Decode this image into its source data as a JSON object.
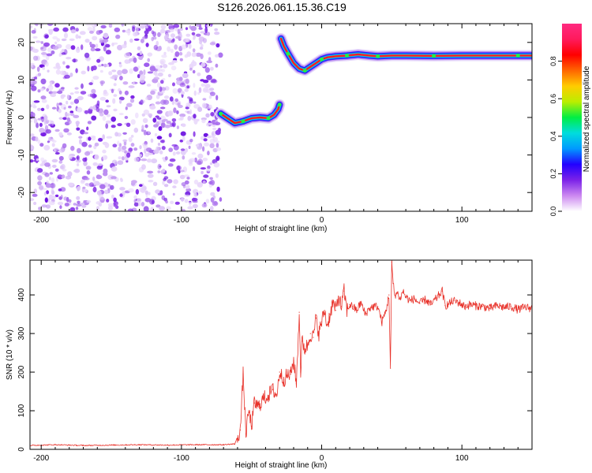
{
  "figure": {
    "title": "S126.2026.061.15.36.C19"
  },
  "chart_data": [
    {
      "type": "heatmap",
      "xlabel": "Height of straight line (km)",
      "ylabel": "Frequency (Hz)",
      "xlim": [
        -208,
        150
      ],
      "ylim": [
        -25,
        25
      ],
      "xticks": [
        -200,
        -100,
        0,
        100
      ],
      "yticks": [
        -20,
        -10,
        0,
        10,
        20
      ],
      "noise_region": {
        "x": [
          -208,
          -72
        ],
        "y": [
          -25,
          25
        ]
      },
      "trace": {
        "x": [
          -72,
          -68,
          -62,
          -56,
          -50,
          -44,
          -38,
          -34,
          -31,
          -30,
          -29,
          -27,
          -24,
          -20,
          -16,
          -12,
          -8,
          -4,
          0,
          4,
          10,
          18,
          26,
          34,
          40,
          50,
          60,
          80,
          100,
          120,
          140,
          150
        ],
        "y": [
          1.0,
          0.0,
          -1.5,
          -1.0,
          -0.2,
          0.0,
          -0.2,
          0.7,
          2.2,
          3.4,
          21.0,
          19.0,
          17.0,
          14.5,
          13.0,
          12.5,
          13.5,
          14.5,
          15.5,
          16.0,
          16.3,
          16.5,
          16.8,
          16.5,
          16.3,
          16.5,
          16.5,
          16.4,
          16.5,
          16.5,
          16.5,
          16.5
        ]
      },
      "colorbar": {
        "label": "Normalized spectral amplitude",
        "range": [
          0,
          1
        ],
        "ticks": [
          "0.0",
          "0.2",
          "0.4",
          "0.6",
          "0.8"
        ],
        "tick_values": [
          0.0,
          0.2,
          0.4,
          0.6,
          0.8
        ],
        "stops": [
          "#ffffff",
          "#cc88f0",
          "#7b22e8",
          "#2200ff",
          "#0099ff",
          "#00dddd",
          "#00ee44",
          "#bbee00",
          "#ffcc00",
          "#ff6600",
          "#ff0000",
          "#ff1a5c",
          "#ff2a80"
        ]
      }
    },
    {
      "type": "line",
      "xlabel": "Height of straight line (km)",
      "ylabel": "SNR (10 * v/v)",
      "xlim": [
        -208,
        150
      ],
      "ylim": [
        0,
        490
      ],
      "xticks": [
        -200,
        -100,
        0,
        100
      ],
      "yticks": [
        0,
        100,
        200,
        300,
        400
      ],
      "color": "#e8322a",
      "series": [
        {
          "x": [
            -208,
            -190,
            -170,
            -150,
            -130,
            -110,
            -90,
            -70,
            -62,
            -58,
            -56,
            -54,
            -52,
            -50,
            -48,
            -45,
            -42,
            -38,
            -35,
            -32,
            -30,
            -27,
            -25,
            -22,
            -20,
            -18,
            -16,
            -15,
            -14,
            -12,
            -10,
            -8,
            -6,
            -4,
            -2,
            0,
            2,
            4,
            6,
            8,
            10,
            12,
            14,
            16,
            18,
            20,
            22,
            25,
            28,
            31,
            34,
            37,
            40,
            43,
            46,
            48,
            49,
            50,
            51,
            52,
            54,
            56,
            58,
            60,
            63,
            66,
            70,
            74,
            78,
            82,
            86,
            88,
            90,
            94,
            98,
            102,
            106,
            110,
            115,
            120,
            125,
            130,
            135,
            140,
            145,
            150
          ],
          "y": [
            10,
            12,
            10,
            11,
            12,
            11,
            12,
            12,
            14,
            50,
            195,
            40,
            100,
            60,
            120,
            110,
            130,
            140,
            155,
            140,
            200,
            180,
            190,
            195,
            230,
            170,
            355,
            200,
            280,
            260,
            270,
            300,
            290,
            340,
            300,
            330,
            360,
            320,
            350,
            380,
            360,
            395,
            370,
            410,
            360,
            375,
            370,
            360,
            380,
            350,
            365,
            370,
            370,
            330,
            360,
            400,
            210,
            485,
            430,
            400,
            405,
            390,
            410,
            395,
            385,
            390,
            378,
            388,
            375,
            392,
            410,
            372,
            375,
            385,
            380,
            370,
            375,
            372,
            370,
            365,
            372,
            368,
            370,
            362,
            368,
            365
          ]
        }
      ]
    }
  ]
}
